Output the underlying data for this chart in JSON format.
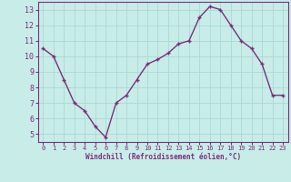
{
  "x": [
    0,
    1,
    2,
    3,
    4,
    5,
    6,
    7,
    8,
    9,
    10,
    11,
    12,
    13,
    14,
    15,
    16,
    17,
    18,
    19,
    20,
    21,
    22,
    23
  ],
  "y": [
    10.5,
    10.0,
    8.5,
    7.0,
    6.5,
    5.5,
    4.8,
    7.0,
    7.5,
    8.5,
    9.5,
    9.8,
    10.2,
    10.8,
    11.0,
    12.5,
    13.2,
    13.0,
    12.0,
    11.0,
    10.5,
    9.5,
    7.5,
    7.5
  ],
  "line_color": "#7B2F7B",
  "marker": "+",
  "bg_color": "#C8ECE8",
  "grid_color": "#AADAD6",
  "xlabel": "Windchill (Refroidissement éolien,°C)",
  "xlabel_color": "#7B2F7B",
  "tick_color": "#7B2F7B",
  "ylim": [
    4.5,
    13.5
  ],
  "xlim": [
    -0.5,
    23.5
  ],
  "yticks": [
    5,
    6,
    7,
    8,
    9,
    10,
    11,
    12,
    13
  ],
  "xtick_labels": [
    "0",
    "1",
    "2",
    "3",
    "4",
    "5",
    "6",
    "7",
    "8",
    "9",
    "10",
    "11",
    "12",
    "13",
    "14",
    "15",
    "16",
    "17",
    "18",
    "19",
    "20",
    "21",
    "22",
    "23"
  ],
  "figsize": [
    3.2,
    2.0
  ],
  "dpi": 100
}
